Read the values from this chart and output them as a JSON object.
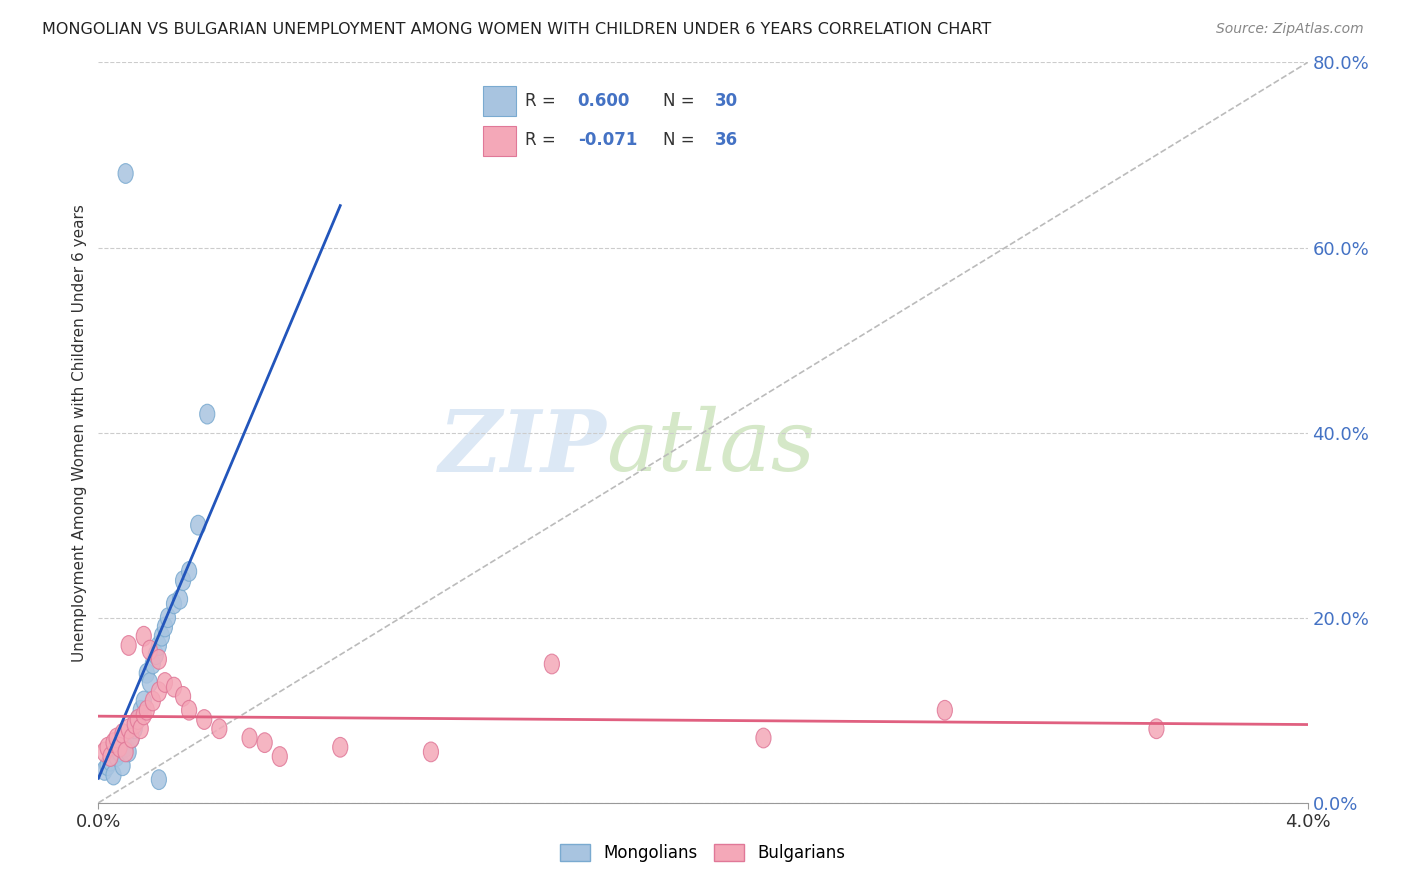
{
  "title": "MONGOLIAN VS BULGARIAN UNEMPLOYMENT AMONG WOMEN WITH CHILDREN UNDER 6 YEARS CORRELATION CHART",
  "source": "Source: ZipAtlas.com",
  "ylabel": "Unemployment Among Women with Children Under 6 years",
  "xlim": [
    0.0,
    4.0
  ],
  "ylim": [
    0.0,
    80.0
  ],
  "ytick_vals": [
    0,
    20,
    40,
    60,
    80
  ],
  "ytick_labels": [
    "0.0%",
    "20.0%",
    "40.0%",
    "60.0%",
    "80.0%"
  ],
  "mongolian_color": "#a8c4e0",
  "mongolian_edge_color": "#7aaad0",
  "bulgarian_color": "#f4a8b8",
  "bulgarian_edge_color": "#e07898",
  "mongolian_line_color": "#2255bb",
  "bulgarian_line_color": "#e06080",
  "diagonal_color": "#bbbbbb",
  "watermark_color": "#dce8f5",
  "legend_text_color": "#333333",
  "legend_value_color": "#4472c4",
  "mongolian_x": [
    0.02,
    0.03,
    0.04,
    0.05,
    0.06,
    0.07,
    0.08,
    0.09,
    0.1,
    0.11,
    0.12,
    0.13,
    0.14,
    0.15,
    0.16,
    0.17,
    0.18,
    0.19,
    0.2,
    0.21,
    0.22,
    0.23,
    0.25,
    0.27,
    0.28,
    0.3,
    0.33,
    0.36,
    0.2,
    0.09
  ],
  "mongolian_y": [
    3.5,
    4.0,
    4.5,
    3.0,
    5.0,
    5.5,
    4.0,
    6.0,
    5.5,
    7.0,
    8.0,
    9.0,
    10.0,
    11.0,
    14.0,
    13.0,
    15.0,
    16.0,
    17.0,
    18.0,
    19.0,
    20.0,
    21.5,
    22.0,
    24.0,
    25.0,
    30.0,
    42.0,
    2.5,
    68.0
  ],
  "bulgarian_x": [
    0.02,
    0.03,
    0.04,
    0.05,
    0.06,
    0.07,
    0.08,
    0.09,
    0.1,
    0.11,
    0.12,
    0.13,
    0.14,
    0.15,
    0.16,
    0.18,
    0.2,
    0.22,
    0.25,
    0.28,
    0.3,
    0.35,
    0.4,
    0.5,
    0.55,
    0.6,
    0.8,
    1.1,
    1.5,
    2.2,
    2.8,
    3.5,
    0.1,
    0.15,
    0.17,
    0.2
  ],
  "bulgarian_y": [
    5.5,
    6.0,
    5.0,
    6.5,
    7.0,
    6.0,
    7.5,
    5.5,
    8.0,
    7.0,
    8.5,
    9.0,
    8.0,
    9.5,
    10.0,
    11.0,
    12.0,
    13.0,
    12.5,
    11.5,
    10.0,
    9.0,
    8.0,
    7.0,
    6.5,
    5.0,
    6.0,
    5.5,
    15.0,
    7.0,
    10.0,
    8.0,
    17.0,
    18.0,
    16.5,
    15.5
  ]
}
